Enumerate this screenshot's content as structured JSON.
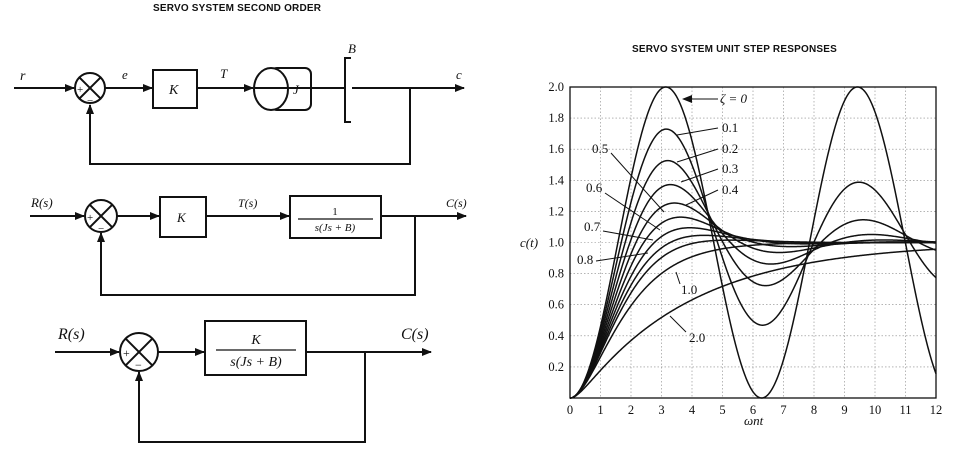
{
  "diagram": {
    "title": "SERVO SYSTEM SECOND ORDER",
    "block1": {
      "r": "r",
      "e": "e",
      "T": "T",
      "c": "c",
      "K": "K",
      "J": "J",
      "B": "B",
      "plus": "+",
      "minus": "−"
    },
    "block2": {
      "R": "R(s)",
      "T": "T(s)",
      "C": "C(s)",
      "K": "K",
      "tf_num": "1",
      "tf_den": "s(Js + B)",
      "plus": "+",
      "minus": "−"
    },
    "block3": {
      "R": "R(s)",
      "C": "C(s)",
      "tf_num": "K",
      "tf_den": "s(Js + B)",
      "plus": "+",
      "minus": "−"
    }
  },
  "chart_data": {
    "type": "line",
    "title": "SERVO SYSTEM UNIT STEP RESPONSES",
    "xlabel": "ωnt",
    "ylabel": "c(t)",
    "xlim": [
      0,
      12
    ],
    "ylim": [
      0,
      2.0
    ],
    "grid": true,
    "x_ticks": [
      "0",
      "1",
      "2",
      "3",
      "4",
      "5",
      "6",
      "7",
      "8",
      "9",
      "10",
      "11",
      "12"
    ],
    "y_ticks": [
      "0.2",
      "0.4",
      "0.6",
      "0.8",
      "1.0",
      "1.2",
      "1.4",
      "1.6",
      "1.8",
      "2.0"
    ],
    "series": [
      {
        "name": "ζ = 0",
        "zeta": 0
      },
      {
        "name": "0.1",
        "zeta": 0.1
      },
      {
        "name": "0.2",
        "zeta": 0.2
      },
      {
        "name": "0.3",
        "zeta": 0.3
      },
      {
        "name": "0.4",
        "zeta": 0.4
      },
      {
        "name": "0.5",
        "zeta": 0.5
      },
      {
        "name": "0.6",
        "zeta": 0.6
      },
      {
        "name": "0.7",
        "zeta": 0.7
      },
      {
        "name": "0.8",
        "zeta": 0.8
      },
      {
        "name": "1.0",
        "zeta": 1.0
      },
      {
        "name": "2.0",
        "zeta": 2.0
      }
    ],
    "curve_color": "#111111",
    "grid_color": "#888888"
  }
}
